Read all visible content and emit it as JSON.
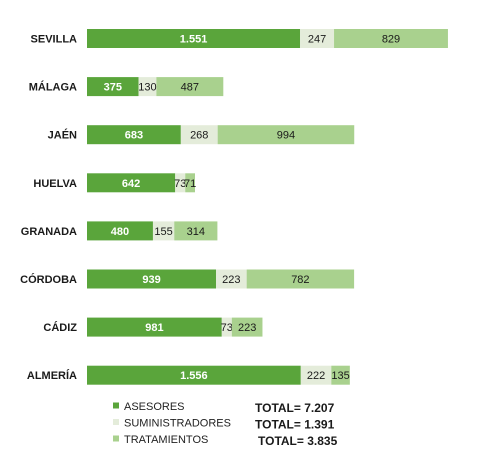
{
  "chart_data": {
    "type": "bar",
    "orientation": "horizontal",
    "stacked": true,
    "categories": [
      "SEVILLA",
      "MÁLAGA",
      "JAÉN",
      "HUELVA",
      "GRANADA",
      "CÓRDOBA",
      "CÁDIZ",
      "ALMERÍA"
    ],
    "series": [
      {
        "name": "ASESORES",
        "color": "#5aa53b",
        "label_color": "#ffffff",
        "values": [
          1551,
          375,
          683,
          642,
          480,
          939,
          981,
          1556
        ],
        "labels": [
          "1.551",
          "375",
          "683",
          "642",
          "480",
          "939",
          "981",
          "1.556"
        ]
      },
      {
        "name": "SUMINISTRADORES",
        "color": "#e4ecda",
        "label_color": "#1a1a1a",
        "values": [
          247,
          130,
          268,
          73,
          155,
          223,
          73,
          222
        ],
        "labels": [
          "247",
          "130",
          "268",
          "73",
          "155",
          "223",
          "73",
          "222"
        ]
      },
      {
        "name": "TRATAMIENTOS",
        "color": "#a9d18e",
        "label_color": "#1a1a1a",
        "values": [
          829,
          487,
          994,
          71,
          314,
          782,
          223,
          135
        ],
        "labels": [
          "829",
          "487",
          "994",
          "71",
          "314",
          "782",
          "223",
          "135"
        ]
      }
    ],
    "totals": [
      "TOTAL= 7.207",
      "TOTAL= 1.391",
      "TOTAL= 3.835"
    ],
    "title": "",
    "xlabel": "",
    "ylabel": "",
    "xlim": [
      0,
      2650
    ],
    "grid": false,
    "legend_position": "bottom-left"
  }
}
